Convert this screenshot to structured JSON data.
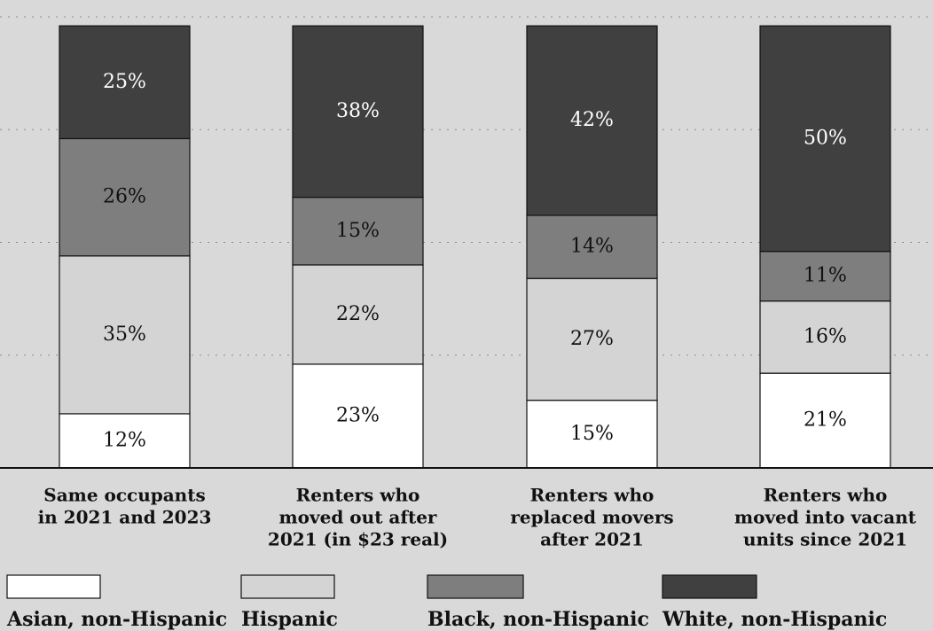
{
  "chart_data": {
    "type": "bar",
    "stacked": true,
    "normalized": true,
    "ylim": [
      0,
      100
    ],
    "grid": true,
    "legend_position": "bottom",
    "categories": [
      [
        "Same occupants",
        "in 2021 and 2023"
      ],
      [
        "Renters who",
        "moved out after",
        "2021 (in $23 real)"
      ],
      [
        "Renters who",
        "replaced movers",
        "after 2021"
      ],
      [
        "Renters who",
        "moved into vacant",
        "units since 2021"
      ]
    ],
    "series": [
      {
        "name": "Asian, non-Hispanic",
        "color": "#ffffff",
        "label_color": "#111111",
        "values": [
          12,
          23,
          15,
          21
        ],
        "labels": [
          "12%",
          "23%",
          "15%",
          "21%"
        ]
      },
      {
        "name": "Hispanic",
        "color": "#d4d4d4",
        "label_color": "#111111",
        "values": [
          35,
          22,
          27,
          16
        ],
        "labels": [
          "35%",
          "22%",
          "27%",
          "16%"
        ]
      },
      {
        "name": "Black, non-Hispanic",
        "color": "#7e7e7e",
        "label_color": "#111111",
        "values": [
          26,
          15,
          14,
          11
        ],
        "labels": [
          "26%",
          "15%",
          "14%",
          "11%"
        ]
      },
      {
        "name": "White, non-Hispanic",
        "color": "#404040",
        "label_color": "#ffffff",
        "values": [
          25,
          38,
          42,
          50
        ],
        "labels": [
          "25%",
          "38%",
          "42%",
          "50%"
        ]
      }
    ]
  }
}
